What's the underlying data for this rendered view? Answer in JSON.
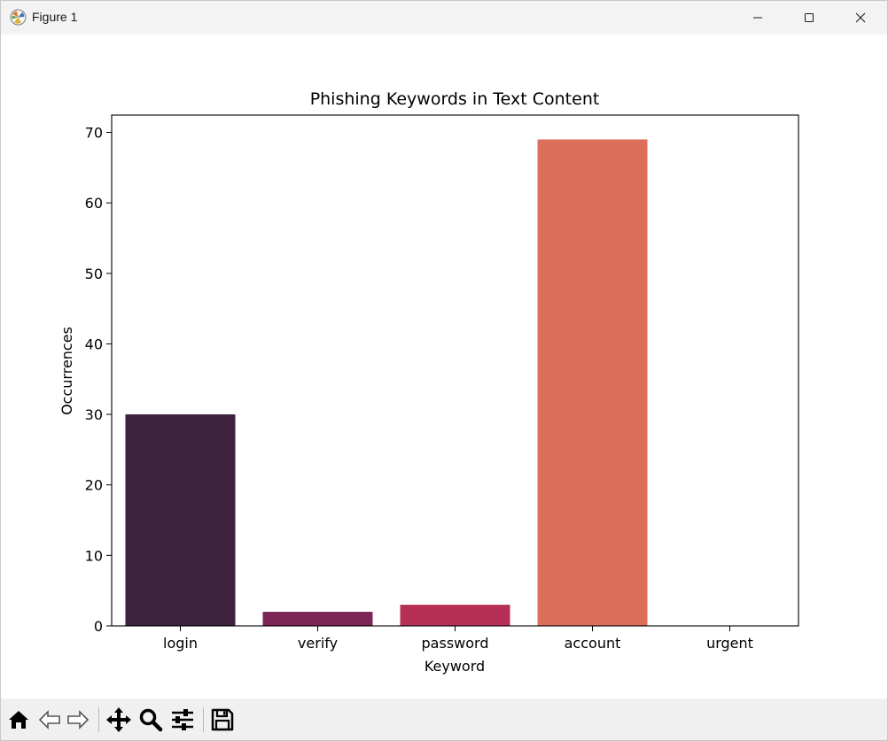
{
  "window": {
    "title": "Figure 1",
    "icon": "matplotlib-icon",
    "controls": [
      "minimize-icon",
      "maximize-icon",
      "close-icon"
    ]
  },
  "toolbar": {
    "items": [
      "home-icon",
      "back-icon",
      "forward-icon",
      "pan-icon",
      "zoom-icon",
      "configure-subplots-icon",
      "save-icon"
    ]
  },
  "chart_data": {
    "type": "bar",
    "title": "Phishing Keywords in Text Content",
    "xlabel": "Keyword",
    "ylabel": "Occurrences",
    "categories": [
      "login",
      "verify",
      "password",
      "account",
      "urgent"
    ],
    "values": [
      30,
      2,
      3,
      69,
      0
    ],
    "colors": [
      "#3d213d",
      "#7b2456",
      "#b52f57",
      "#dc6f59",
      "#f4b28c"
    ],
    "ylim": [
      0,
      72.45
    ],
    "yticks": [
      0,
      10,
      20,
      30,
      40,
      50,
      60,
      70
    ],
    "grid": false,
    "legend": "none"
  }
}
